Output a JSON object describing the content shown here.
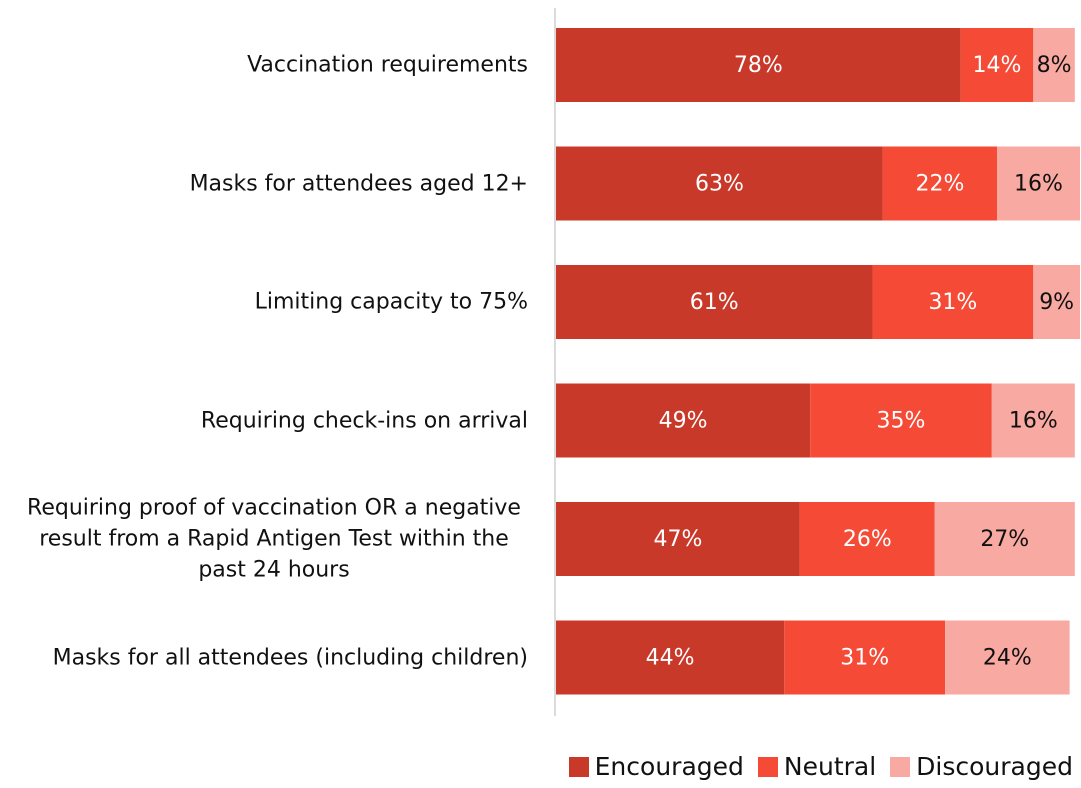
{
  "chart_data": {
    "type": "stacked_barh",
    "categories": [
      "Vaccination requirements",
      "Masks for attendees aged 12+",
      "Limiting capacity to 75%",
      "Requiring check-ins on arrival",
      "Requiring proof of vaccination OR a negative result from a Rapid Antigen Test within the past 24 hours",
      "Masks for all attendees (including children)"
    ],
    "series": [
      {
        "name": "Encouraged",
        "color": "#c9392a",
        "label_color": "#ffffff",
        "values": [
          78,
          63,
          61,
          49,
          47,
          44
        ],
        "value_labels": [
          "78%",
          "63%",
          "61%",
          "49%",
          "47%",
          "44%"
        ]
      },
      {
        "name": "Neutral",
        "color": "#f44a36",
        "label_color": "#ffffff",
        "values": [
          14,
          22,
          31,
          35,
          26,
          31
        ],
        "value_labels": [
          "14%",
          "22%",
          "31%",
          "35%",
          "26%",
          "31%"
        ]
      },
      {
        "name": "Discouraged",
        "color": "#f8a9a1",
        "label_color": "#111111",
        "values": [
          8,
          16,
          9,
          16,
          27,
          24
        ],
        "value_labels": [
          "8%",
          "16%",
          "9%",
          "16%",
          "27%",
          "24%"
        ]
      }
    ]
  }
}
